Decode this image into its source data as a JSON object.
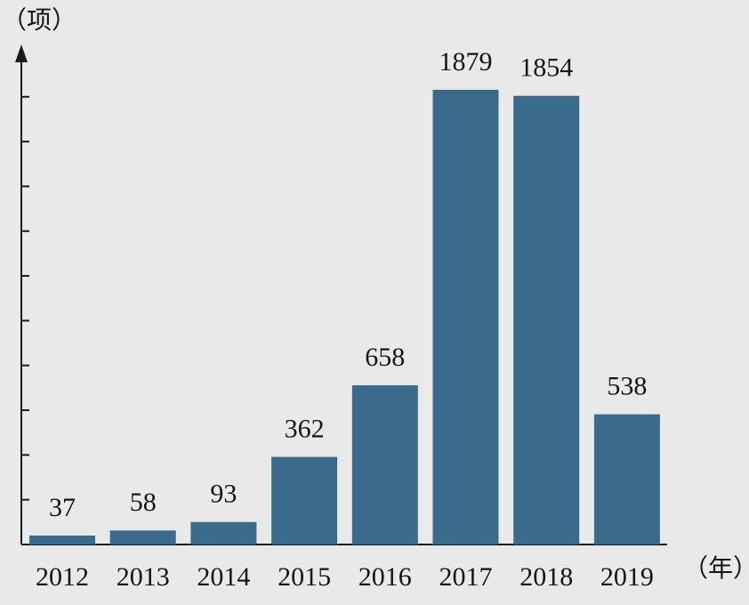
{
  "chart_data": {
    "type": "bar",
    "categories": [
      "2012",
      "2013",
      "2014",
      "2015",
      "2016",
      "2017",
      "2018",
      "2019"
    ],
    "values": [
      37,
      58,
      93,
      362,
      658,
      1879,
      1854,
      538
    ],
    "data_labels": [
      "37",
      "58",
      "93",
      "362",
      "658",
      "1879",
      "1854",
      "538"
    ],
    "title": "",
    "xlabel": "（年）",
    "ylabel": "（项）",
    "ylim": [
      0,
      2000
    ],
    "y_tick_step": 185,
    "y_tick_labels_shown": false,
    "grid": false,
    "legend": "none",
    "colors": {
      "bar": "#3b6b8a",
      "axis": "#1a1a1a",
      "background": "#e9e9e9",
      "text": "#151515"
    }
  }
}
